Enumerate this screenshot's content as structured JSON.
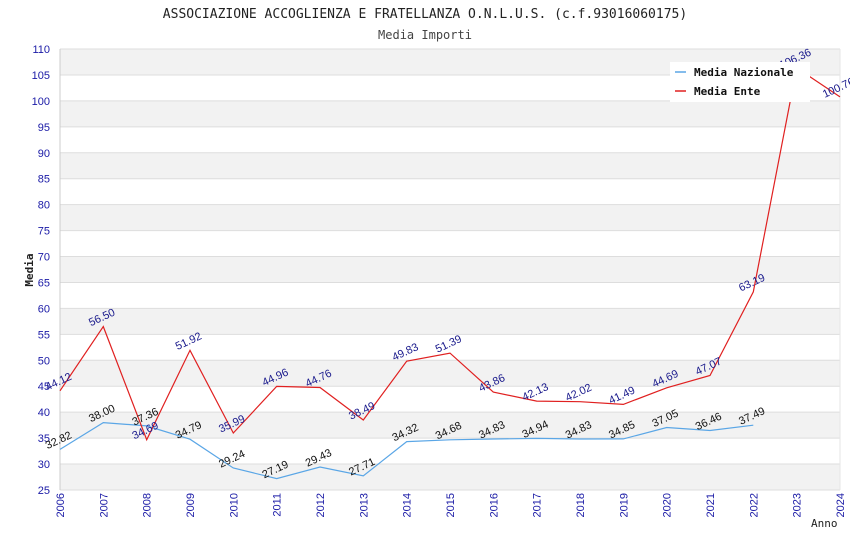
{
  "chart_data": {
    "type": "line",
    "title": "ASSOCIAZIONE ACCOGLIENZA E FRATELLANZA O.N.L.U.S. (c.f.93016060175)",
    "subtitle": "Media Importi",
    "xlabel": "Anno",
    "ylabel": "Media",
    "ylim": [
      25,
      110
    ],
    "y_step": 5,
    "grid": "horizontal alternating bands",
    "legend_position": "top-right",
    "categories": [
      "2006",
      "2007",
      "2008",
      "2009",
      "2010",
      "2011",
      "2012",
      "2013",
      "2014",
      "2015",
      "2016",
      "2017",
      "2018",
      "2019",
      "2020",
      "2021",
      "2022",
      "2023",
      "2024"
    ],
    "series": [
      {
        "name": "Media Nazionale",
        "color": "#5aa6e6",
        "label_color": "#111111",
        "values": [
          32.82,
          38.0,
          37.36,
          34.79,
          29.24,
          27.19,
          29.43,
          27.71,
          34.32,
          34.68,
          34.83,
          34.94,
          34.83,
          34.85,
          37.05,
          36.46,
          37.49,
          null,
          null
        ],
        "labels": [
          "32.82",
          "38.00",
          "37.36",
          "34.79",
          "29.24",
          "27.19",
          "29.43",
          "27.71",
          "34.32",
          "34.68",
          "34.83",
          "34.94",
          "34.83",
          "34.85",
          "37.05",
          "36.46",
          "37.49",
          null,
          null
        ]
      },
      {
        "name": "Media Ente",
        "color": "#e02020",
        "label_color": "#1a1a8c",
        "values": [
          44.12,
          56.5,
          34.69,
          51.92,
          35.99,
          44.96,
          44.76,
          38.49,
          49.83,
          51.39,
          43.86,
          42.13,
          42.02,
          41.49,
          44.69,
          47.07,
          63.19,
          106.36,
          100.76
        ],
        "labels": [
          "44.12",
          "56.50",
          "34.69",
          "51.92",
          "35.99",
          "44.96",
          "44.76",
          "38.49",
          "49.83",
          "51.39",
          "43.86",
          "42.13",
          "42.02",
          "41.49",
          "44.69",
          "47.07",
          "63.19",
          "106.36",
          "100.76"
        ]
      }
    ]
  }
}
